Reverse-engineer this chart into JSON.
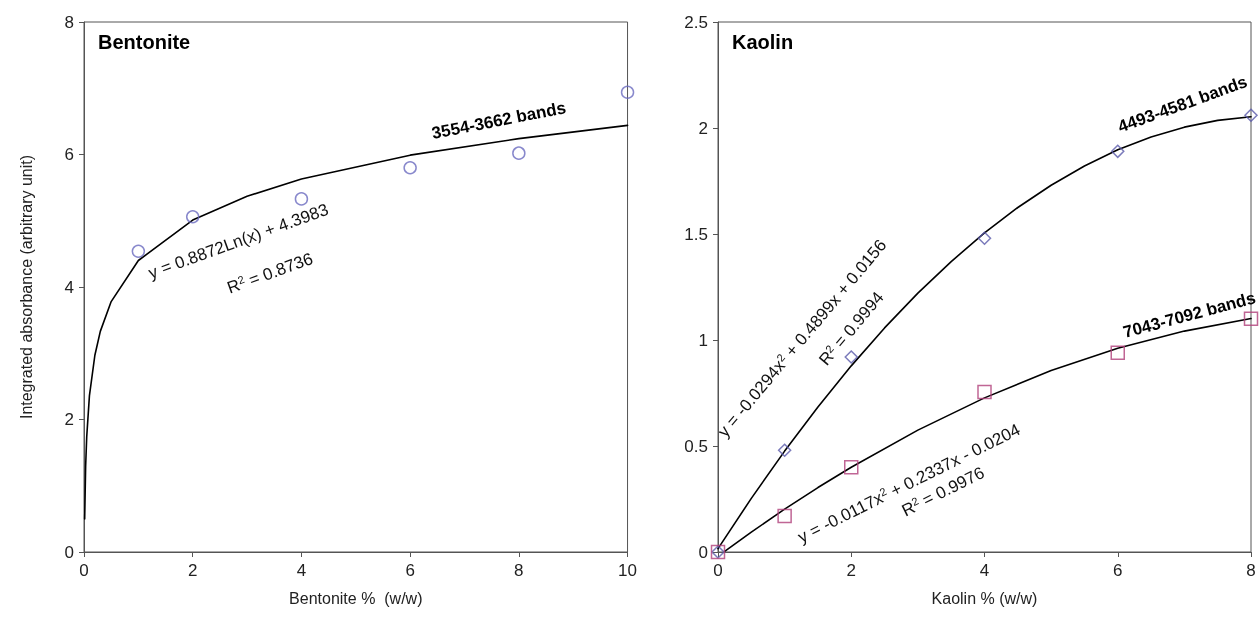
{
  "chart_data": [
    {
      "type": "scatter",
      "title": "Bentonite",
      "xlabel": "Bentonite %  (w/w)",
      "ylabel": "Integrated absorbance (arbitrary unit)",
      "xlim": [
        0,
        10
      ],
      "xticks": [
        0,
        2,
        4,
        6,
        8,
        10
      ],
      "ylim": [
        0,
        8
      ],
      "yticks": [
        0,
        2,
        4,
        6,
        8
      ],
      "grid": false,
      "legend": false,
      "series": [
        {
          "marker": "circle",
          "color": "#6a6abf",
          "x": [
            1,
            2,
            4,
            6,
            8,
            10
          ],
          "values": [
            4.54,
            5.06,
            5.33,
            5.8,
            6.02,
            6.94
          ]
        },
        {
          "type": "line",
          "marker": "none",
          "name": "3554-3662 bands",
          "color": "#000000",
          "x": [
            0.0124,
            0.03,
            0.05,
            0.1,
            0.2,
            0.3,
            0.5,
            1,
            2,
            3,
            4,
            6,
            8,
            10
          ],
          "values": [
            0.5,
            1.29,
            1.74,
            2.36,
            2.97,
            3.33,
            3.78,
            4.4,
            5.01,
            5.37,
            5.63,
            5.99,
            6.24,
            6.44
          ]
        }
      ],
      "annotations": [
        "y = 0.8872Ln(x) + 4.3983",
        "R$^{2}$ = 0.8736"
      ]
    },
    {
      "type": "scatter",
      "title": "Kaolin",
      "xlabel": "Kaolin % (w/w)",
      "xlim": [
        0,
        8
      ],
      "xticks": [
        0,
        2,
        4,
        6,
        8
      ],
      "ylim": [
        0,
        2.5
      ],
      "yticks": [
        0,
        0.5,
        1,
        1.5,
        2,
        2.5
      ],
      "grid": false,
      "legend": false,
      "series": [
        {
          "marker": "diamond",
          "color": "#5a5aaa",
          "x": [
            0,
            1,
            2,
            4,
            6,
            8
          ],
          "values": [
            0,
            0.48,
            0.92,
            1.48,
            1.89,
            2.06
          ]
        },
        {
          "marker": "square",
          "color": "#b0407a",
          "x": [
            0,
            1,
            2,
            4,
            6,
            8
          ],
          "values": [
            0,
            0.17,
            0.4,
            0.755,
            0.94,
            1.1
          ]
        },
        {
          "type": "line",
          "marker": "none",
          "name": "4493-4581 bands",
          "color": "#000000",
          "x": [
            0,
            0.5,
            1,
            1.5,
            2,
            2.5,
            3,
            3.5,
            4,
            4.5,
            5,
            5.5,
            6,
            6.5,
            7,
            7.5,
            8
          ],
          "values": [
            0.016,
            0.253,
            0.476,
            0.684,
            0.878,
            1.057,
            1.221,
            1.37,
            1.505,
            1.625,
            1.73,
            1.821,
            1.897,
            1.958,
            2.004,
            2.036,
            2.053
          ]
        },
        {
          "type": "line",
          "marker": "none",
          "name": "7043-7092 bands",
          "color": "#000000",
          "x": [
            0.1,
            0.5,
            1,
            1.5,
            2,
            3,
            4,
            5,
            6,
            7,
            8
          ],
          "values": [
            0.003,
            0.094,
            0.202,
            0.304,
            0.4,
            0.575,
            0.727,
            0.856,
            0.961,
            1.042,
            1.101
          ]
        }
      ],
      "annotations": [
        "y = -0.0294x$^{2}$ + 0.4899x + 0.0156",
        "R$^{2}$ = 0.9994",
        "y = -0.0117x$^{2}$ + 0.2337x - 0.0204",
        "R$^{2}$ = 0.9976"
      ]
    }
  ]
}
